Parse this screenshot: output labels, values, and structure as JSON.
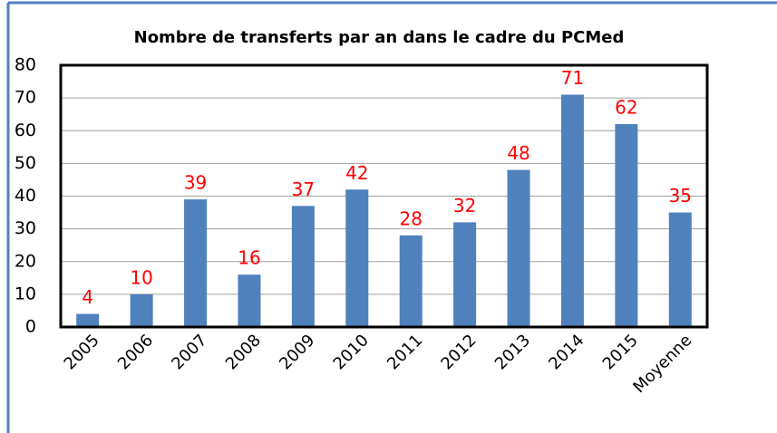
{
  "chart_data": {
    "type": "bar",
    "title": "Nombre de transferts par an dans le cadre du PCMed",
    "categories": [
      "2005",
      "2006",
      "2007",
      "2008",
      "2009",
      "2010",
      "2011",
      "2012",
      "2013",
      "2014",
      "2015",
      "Moyenne"
    ],
    "values": [
      4,
      10,
      39,
      16,
      37,
      42,
      28,
      32,
      48,
      71,
      62,
      35
    ],
    "color": "#4f81bd",
    "value_label_color": "#ff0000",
    "ylim": [
      0,
      80
    ],
    "yticks": [
      0,
      10,
      20,
      30,
      40,
      50,
      60,
      70,
      80
    ],
    "grid": true
  }
}
